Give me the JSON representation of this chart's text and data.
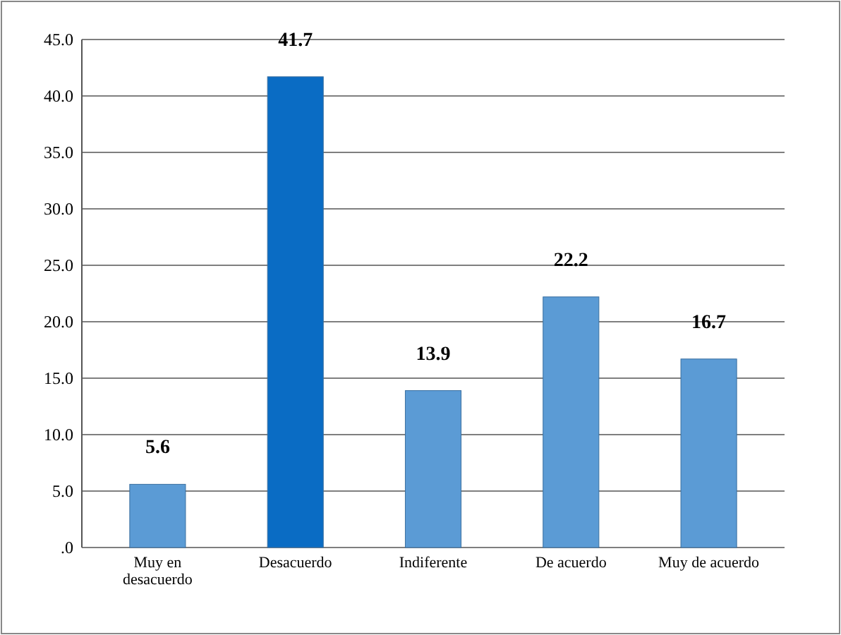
{
  "chart_data": {
    "type": "bar",
    "categories": [
      "Muy en desacuerdo",
      "Desacuerdo",
      "Indiferente",
      "De acuerdo",
      "Muy de acuerdo"
    ],
    "values": [
      5.6,
      41.7,
      13.9,
      22.2,
      16.7
    ],
    "colors": [
      "#5b9bd5",
      "#0a6cc4",
      "#5b9bd5",
      "#5b9bd5",
      "#5b9bd5"
    ],
    "ylim": [
      0,
      45
    ],
    "yticks": [
      {
        "value": 0,
        "label": ".0"
      },
      {
        "value": 5,
        "label": "5.0"
      },
      {
        "value": 10,
        "label": "10.0"
      },
      {
        "value": 15,
        "label": "15.0"
      },
      {
        "value": 20,
        "label": "20.0"
      },
      {
        "value": 25,
        "label": "25.0"
      },
      {
        "value": 30,
        "label": "30.0"
      },
      {
        "value": 35,
        "label": "35.0"
      },
      {
        "value": 40,
        "label": "40.0"
      },
      {
        "value": 45,
        "label": "45.0"
      }
    ],
    "grid": "y",
    "data_labels": true
  }
}
